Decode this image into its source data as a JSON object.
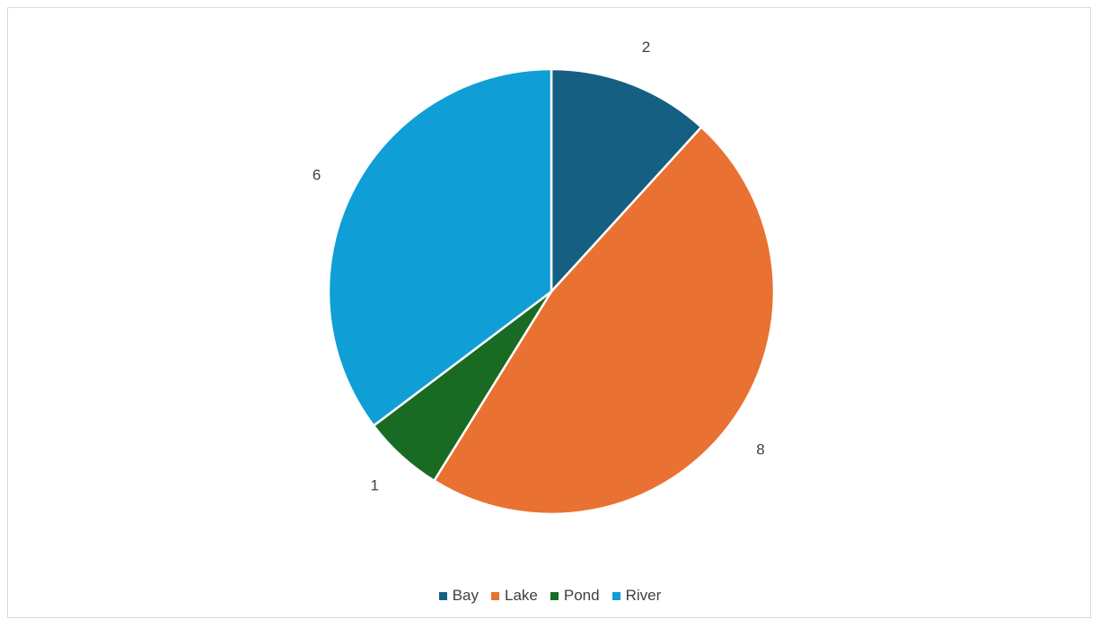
{
  "chart_data": {
    "type": "pie",
    "categories": [
      "Bay",
      "Lake",
      "Pond",
      "River"
    ],
    "values": [
      2,
      8,
      1,
      6
    ],
    "colors": [
      "#156082",
      "#e97132",
      "#196b24",
      "#0f9ed5"
    ],
    "start_angle_deg": 0,
    "direction": "clockwise",
    "legend_position": "bottom",
    "data_labels": [
      "2",
      "8",
      "1",
      "6"
    ]
  },
  "legend": {
    "items": [
      {
        "label": "Bay",
        "color": "#156082"
      },
      {
        "label": "Lake",
        "color": "#e97132"
      },
      {
        "label": "Pond",
        "color": "#196b24"
      },
      {
        "label": "River",
        "color": "#0f9ed5"
      }
    ]
  }
}
